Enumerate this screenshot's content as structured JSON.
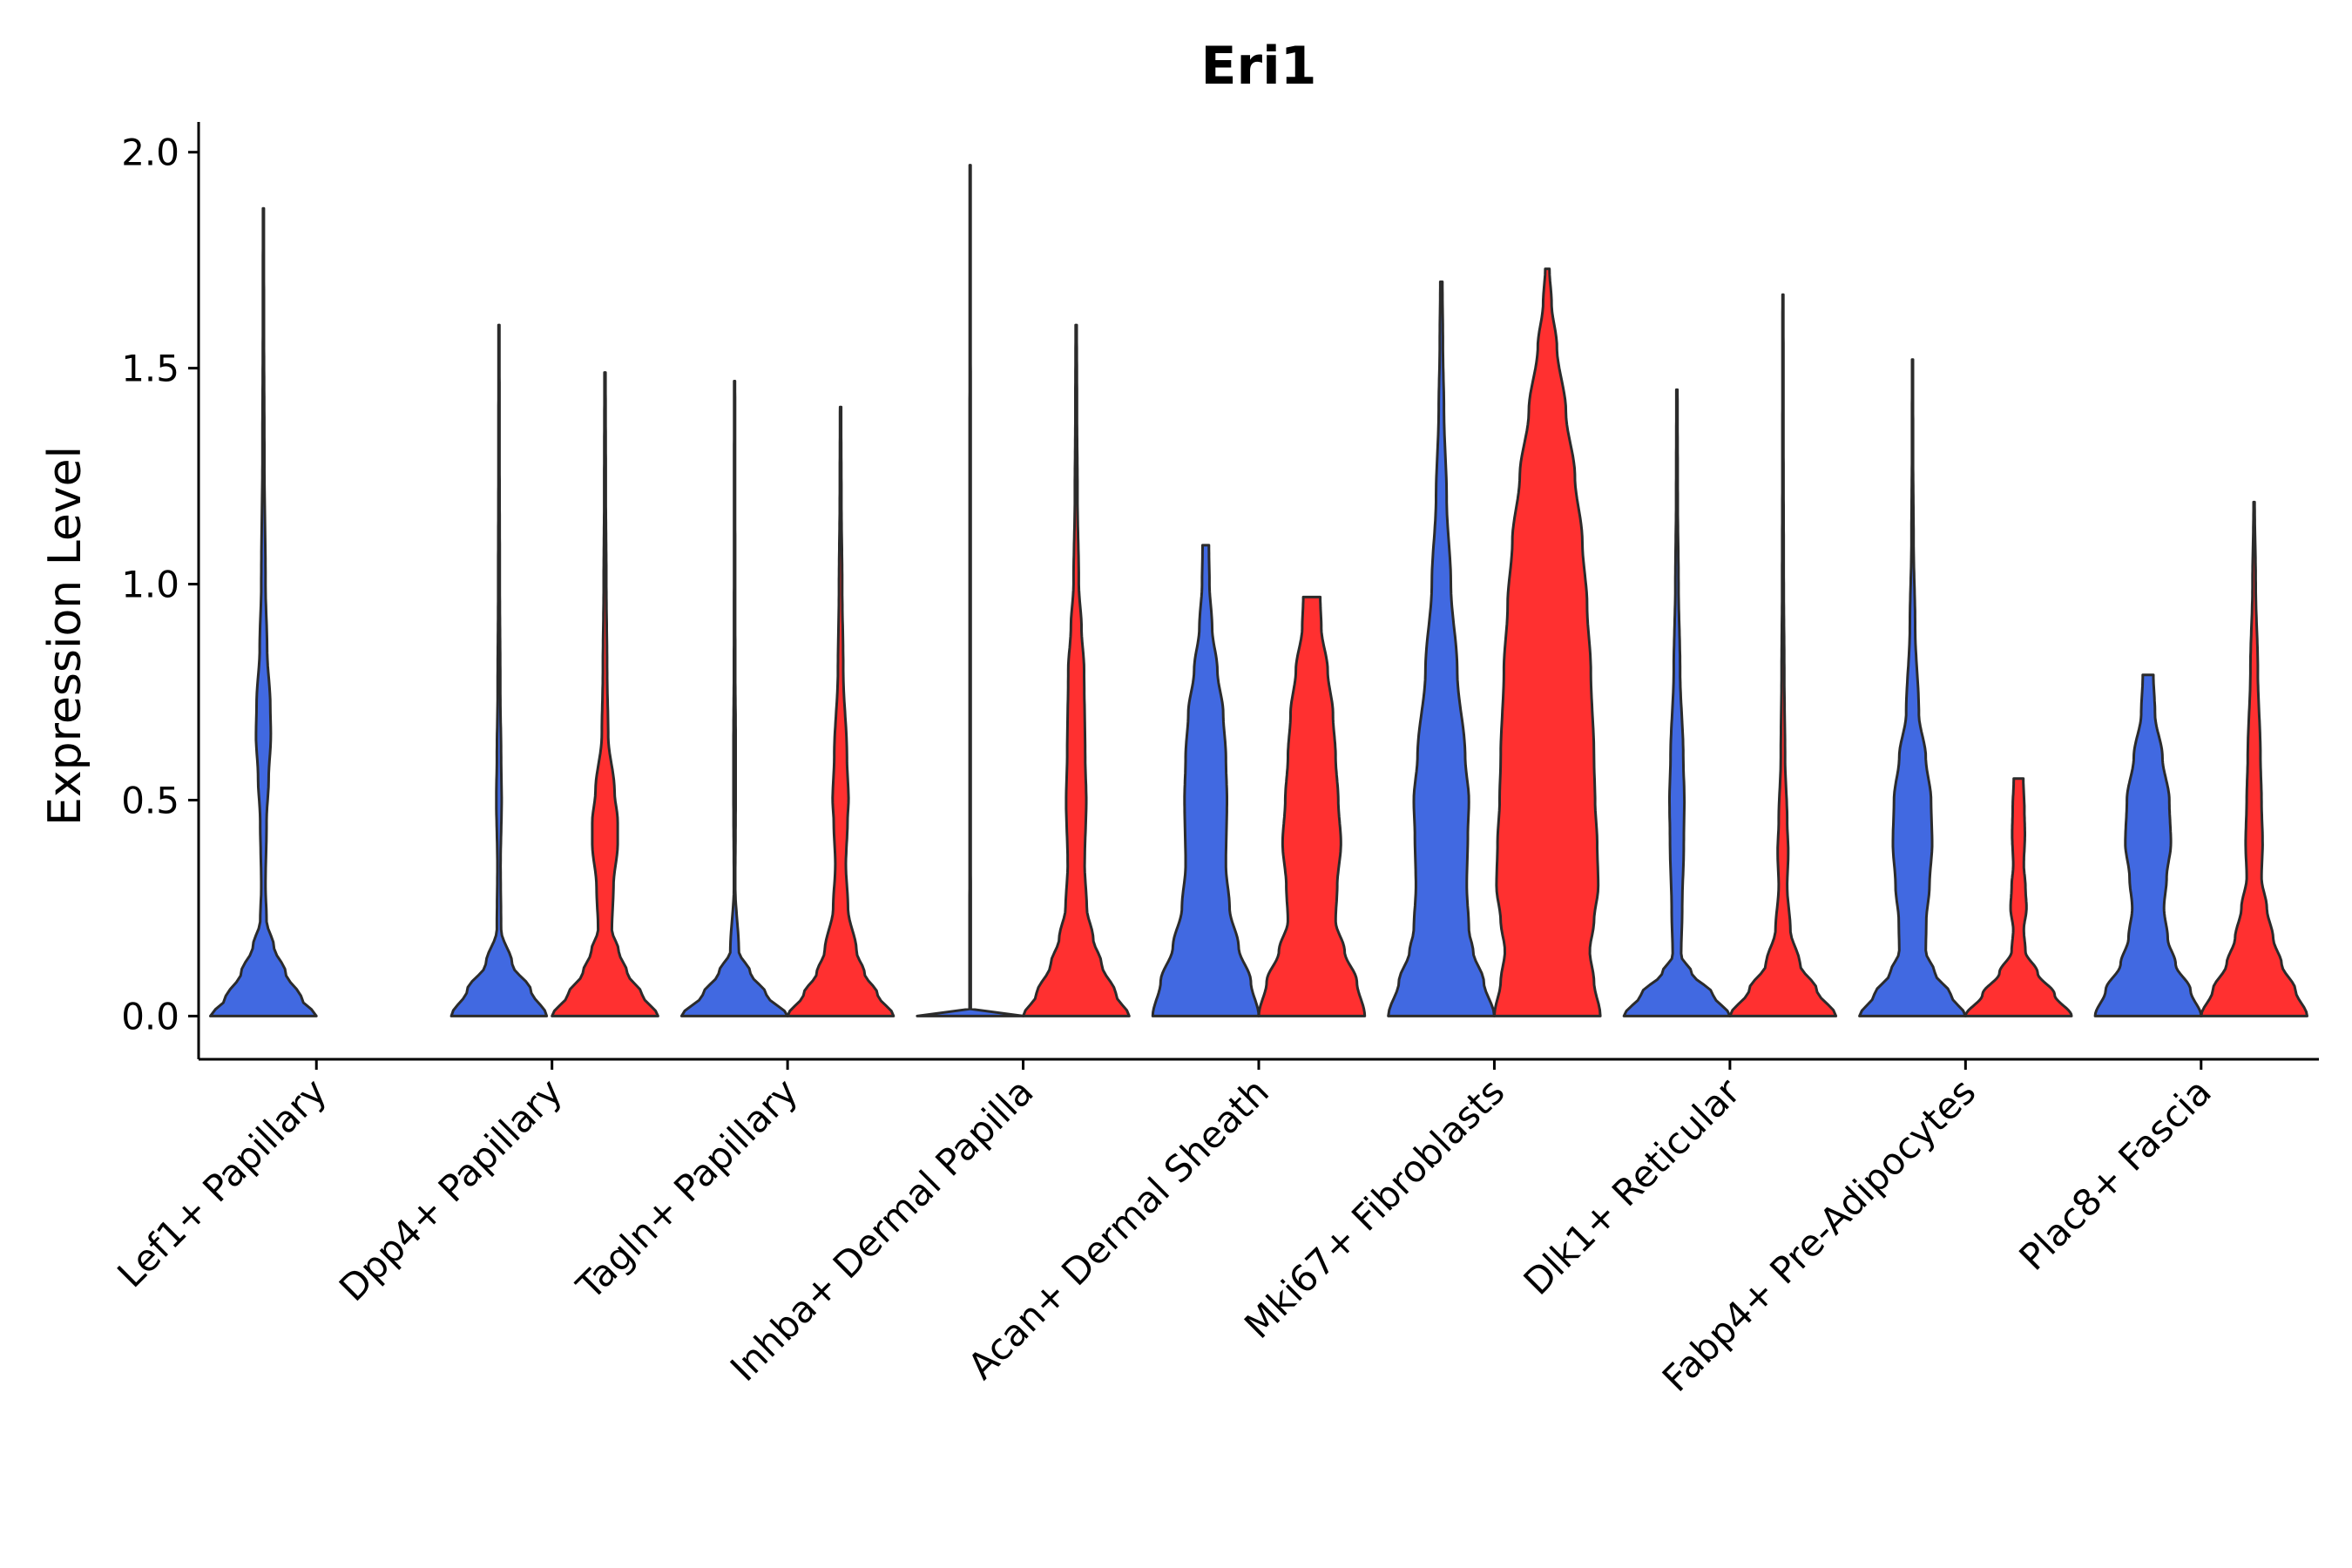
{
  "chart_data": {
    "type": "violin",
    "title": "Eri1",
    "xlabel": "",
    "ylabel": "Expression Level",
    "ylim": [
      -0.1,
      2.07
    ],
    "yticks": [
      0.0,
      0.5,
      1.0,
      1.5,
      2.0
    ],
    "ytick_labels": [
      "0.0",
      "0.5",
      "1.0",
      "1.5",
      "2.0"
    ],
    "grid": false,
    "legend": "none",
    "colors": {
      "group1": "#4169e1",
      "group2": "#ff3030",
      "outline": "#2b2b2b"
    },
    "categories": [
      "Lef1+ Papillary",
      "Dpp4+ Papillary",
      "Tagln+ Papillary",
      "Inhba+ Dermal Papilla",
      "Acan+ Dermal Sheath",
      "Mki67+ Fibroblasts",
      "Dlk1+ Reticular",
      "Fabp4+ Pre-Adipocytes",
      "Plac8+ Fascia"
    ],
    "series": [
      {
        "name": "group1",
        "color": "#4169e1",
        "violins": [
          {
            "max": 1.87,
            "profile": [
              [
                0.0,
                1.0
              ],
              [
                0.04,
                0.72
              ],
              [
                0.1,
                0.42
              ],
              [
                0.16,
                0.2
              ],
              [
                0.22,
                0.06
              ],
              [
                0.3,
                0.04
              ],
              [
                0.45,
                0.06
              ],
              [
                0.55,
                0.1
              ],
              [
                0.65,
                0.14
              ],
              [
                0.72,
                0.13
              ],
              [
                0.85,
                0.07
              ],
              [
                1.0,
                0.04
              ],
              [
                1.3,
                0.018
              ],
              [
                1.6,
                0.01
              ],
              [
                1.87,
                0.008
              ]
            ]
          },
          {
            "max": 1.6,
            "profile": [
              [
                0.0,
                0.9
              ],
              [
                0.06,
                0.6
              ],
              [
                0.12,
                0.25
              ],
              [
                0.2,
                0.04
              ],
              [
                0.35,
                0.03
              ],
              [
                0.5,
                0.05
              ],
              [
                0.6,
                0.04
              ],
              [
                0.75,
                0.025
              ],
              [
                1.0,
                0.015
              ],
              [
                1.3,
                0.01
              ],
              [
                1.6,
                0.008
              ]
            ]
          },
          {
            "max": 1.47,
            "profile": [
              [
                0.0,
                1.0
              ],
              [
                0.05,
                0.6
              ],
              [
                0.1,
                0.3
              ],
              [
                0.15,
                0.08
              ],
              [
                0.3,
                0.012
              ],
              [
                0.5,
                0.02
              ],
              [
                0.65,
                0.02
              ],
              [
                0.8,
                0.012
              ],
              [
                1.0,
                0.01
              ],
              [
                1.47,
                0.008
              ]
            ]
          },
          {
            "max": 1.97,
            "profile": [
              [
                0.0,
                1.0
              ],
              [
                0.004,
                0.012
              ],
              [
                0.5,
                0.01
              ],
              [
                1.0,
                0.01
              ],
              [
                1.97,
                0.008
              ]
            ]
          },
          {
            "max": 1.09,
            "profile": [
              [
                0.0,
                1.0
              ],
              [
                0.08,
                0.85
              ],
              [
                0.16,
                0.62
              ],
              [
                0.25,
                0.45
              ],
              [
                0.35,
                0.38
              ],
              [
                0.5,
                0.4
              ],
              [
                0.6,
                0.38
              ],
              [
                0.7,
                0.33
              ],
              [
                0.8,
                0.22
              ],
              [
                0.9,
                0.12
              ],
              [
                1.0,
                0.07
              ],
              [
                1.09,
                0.06
              ]
            ]
          },
          {
            "max": 1.7,
            "profile": [
              [
                0.0,
                1.0
              ],
              [
                0.08,
                0.8
              ],
              [
                0.15,
                0.6
              ],
              [
                0.2,
                0.52
              ],
              [
                0.3,
                0.48
              ],
              [
                0.42,
                0.5
              ],
              [
                0.5,
                0.52
              ],
              [
                0.6,
                0.45
              ],
              [
                0.8,
                0.3
              ],
              [
                1.0,
                0.18
              ],
              [
                1.2,
                0.1
              ],
              [
                1.4,
                0.05
              ],
              [
                1.55,
                0.03
              ],
              [
                1.7,
                0.02
              ]
            ]
          },
          {
            "max": 1.45,
            "profile": [
              [
                0.0,
                1.0
              ],
              [
                0.05,
                0.68
              ],
              [
                0.1,
                0.28
              ],
              [
                0.14,
                0.08
              ],
              [
                0.25,
                0.1
              ],
              [
                0.4,
                0.13
              ],
              [
                0.5,
                0.14
              ],
              [
                0.6,
                0.12
              ],
              [
                0.8,
                0.06
              ],
              [
                1.0,
                0.03
              ],
              [
                1.2,
                0.015
              ],
              [
                1.45,
                0.01
              ]
            ]
          },
          {
            "max": 1.52,
            "profile": [
              [
                0.0,
                1.0
              ],
              [
                0.05,
                0.72
              ],
              [
                0.1,
                0.42
              ],
              [
                0.15,
                0.25
              ],
              [
                0.22,
                0.26
              ],
              [
                0.3,
                0.32
              ],
              [
                0.4,
                0.37
              ],
              [
                0.5,
                0.35
              ],
              [
                0.6,
                0.25
              ],
              [
                0.7,
                0.12
              ],
              [
                0.9,
                0.05
              ],
              [
                1.1,
                0.02
              ],
              [
                1.3,
                0.01
              ],
              [
                1.52,
                0.008
              ]
            ]
          },
          {
            "max": 0.79,
            "profile": [
              [
                0.0,
                1.0
              ],
              [
                0.06,
                0.8
              ],
              [
                0.12,
                0.52
              ],
              [
                0.18,
                0.37
              ],
              [
                0.25,
                0.3
              ],
              [
                0.32,
                0.35
              ],
              [
                0.4,
                0.43
              ],
              [
                0.5,
                0.4
              ],
              [
                0.6,
                0.27
              ],
              [
                0.7,
                0.13
              ],
              [
                0.79,
                0.1
              ]
            ]
          }
        ]
      },
      {
        "name": "group2",
        "color": "#ff3030",
        "violins": [
          null,
          {
            "max": 1.49,
            "profile": [
              [
                0.0,
                1.0
              ],
              [
                0.05,
                0.7
              ],
              [
                0.1,
                0.42
              ],
              [
                0.15,
                0.26
              ],
              [
                0.2,
                0.13
              ],
              [
                0.3,
                0.16
              ],
              [
                0.4,
                0.24
              ],
              [
                0.45,
                0.24
              ],
              [
                0.52,
                0.18
              ],
              [
                0.65,
                0.06
              ],
              [
                0.8,
                0.04
              ],
              [
                1.0,
                0.025
              ],
              [
                1.2,
                0.015
              ],
              [
                1.49,
                0.01
              ]
            ]
          },
          {
            "max": 1.41,
            "profile": [
              [
                0.0,
                1.0
              ],
              [
                0.05,
                0.7
              ],
              [
                0.1,
                0.45
              ],
              [
                0.15,
                0.3
              ],
              [
                0.25,
                0.14
              ],
              [
                0.35,
                0.1
              ],
              [
                0.45,
                0.13
              ],
              [
                0.5,
                0.15
              ],
              [
                0.6,
                0.12
              ],
              [
                0.8,
                0.05
              ],
              [
                1.0,
                0.03
              ],
              [
                1.2,
                0.015
              ],
              [
                1.41,
                0.01
              ]
            ]
          },
          {
            "max": 1.6,
            "profile": [
              [
                0.0,
                1.0
              ],
              [
                0.05,
                0.75
              ],
              [
                0.12,
                0.48
              ],
              [
                0.18,
                0.32
              ],
              [
                0.25,
                0.2
              ],
              [
                0.35,
                0.16
              ],
              [
                0.5,
                0.19
              ],
              [
                0.6,
                0.17
              ],
              [
                0.8,
                0.15
              ],
              [
                0.9,
                0.1
              ],
              [
                1.0,
                0.05
              ],
              [
                1.2,
                0.025
              ],
              [
                1.4,
                0.015
              ],
              [
                1.6,
                0.01
              ]
            ]
          },
          {
            "max": 0.97,
            "profile": [
              [
                0.0,
                1.0
              ],
              [
                0.08,
                0.85
              ],
              [
                0.15,
                0.62
              ],
              [
                0.22,
                0.45
              ],
              [
                0.3,
                0.48
              ],
              [
                0.4,
                0.55
              ],
              [
                0.5,
                0.5
              ],
              [
                0.6,
                0.45
              ],
              [
                0.7,
                0.4
              ],
              [
                0.8,
                0.3
              ],
              [
                0.9,
                0.18
              ],
              [
                0.97,
                0.16
              ]
            ]
          },
          {
            "max": 1.73,
            "profile": [
              [
                0.0,
                1.0
              ],
              [
                0.08,
                0.88
              ],
              [
                0.15,
                0.8
              ],
              [
                0.22,
                0.88
              ],
              [
                0.3,
                0.96
              ],
              [
                0.4,
                0.94
              ],
              [
                0.5,
                0.9
              ],
              [
                0.6,
                0.88
              ],
              [
                0.8,
                0.82
              ],
              [
                0.95,
                0.75
              ],
              [
                1.1,
                0.66
              ],
              [
                1.25,
                0.52
              ],
              [
                1.4,
                0.35
              ],
              [
                1.55,
                0.18
              ],
              [
                1.65,
                0.08
              ],
              [
                1.73,
                0.04
              ]
            ]
          },
          {
            "max": 1.67,
            "profile": [
              [
                0.0,
                1.0
              ],
              [
                0.06,
                0.64
              ],
              [
                0.12,
                0.32
              ],
              [
                0.2,
                0.14
              ],
              [
                0.3,
                0.08
              ],
              [
                0.38,
                0.1
              ],
              [
                0.45,
                0.08
              ],
              [
                0.6,
                0.04
              ],
              [
                0.8,
                0.025
              ],
              [
                1.0,
                0.015
              ],
              [
                1.3,
                0.01
              ],
              [
                1.67,
                0.008
              ]
            ]
          },
          {
            "max": 0.55,
            "profile": [
              [
                0.0,
                1.0
              ],
              [
                0.05,
                0.68
              ],
              [
                0.1,
                0.36
              ],
              [
                0.15,
                0.13
              ],
              [
                0.2,
                0.1
              ],
              [
                0.25,
                0.15
              ],
              [
                0.3,
                0.13
              ],
              [
                0.35,
                0.1
              ],
              [
                0.42,
                0.12
              ],
              [
                0.48,
                0.11
              ],
              [
                0.55,
                0.09
              ]
            ]
          },
          {
            "max": 1.19,
            "profile": [
              [
                0.0,
                1.0
              ],
              [
                0.06,
                0.78
              ],
              [
                0.12,
                0.52
              ],
              [
                0.18,
                0.36
              ],
              [
                0.25,
                0.24
              ],
              [
                0.32,
                0.14
              ],
              [
                0.4,
                0.16
              ],
              [
                0.5,
                0.14
              ],
              [
                0.6,
                0.12
              ],
              [
                0.8,
                0.07
              ],
              [
                1.0,
                0.03
              ],
              [
                1.19,
                0.01
              ]
            ]
          }
        ]
      }
    ]
  }
}
